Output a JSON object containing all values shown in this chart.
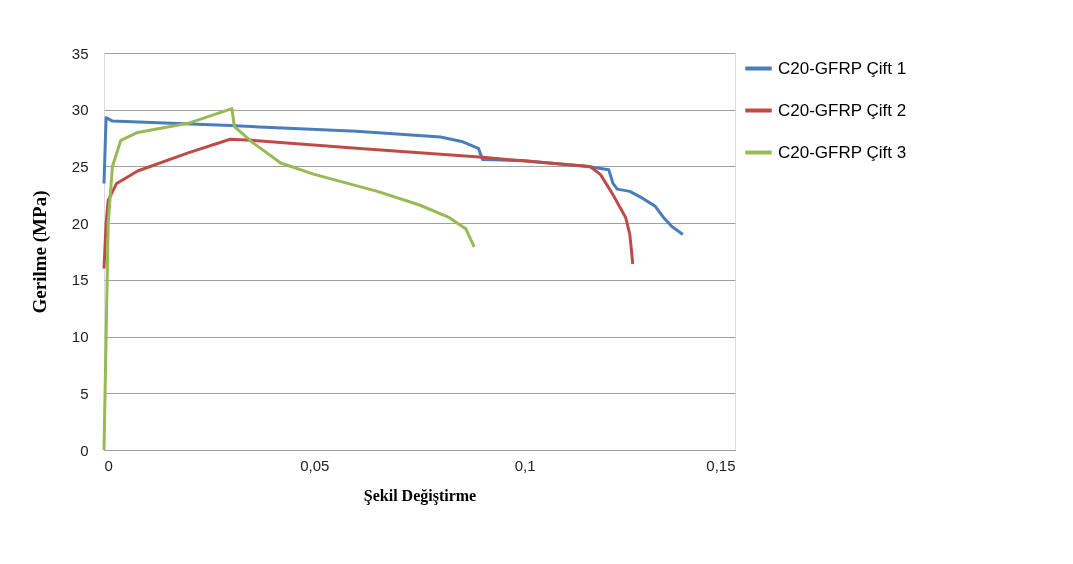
{
  "chart_data": {
    "type": "line",
    "xlabel": "Şekil Değiştirme",
    "ylabel": "Gerilme  (MPa)",
    "xlim": [
      0,
      0.15
    ],
    "xticks": [
      0,
      {
        "value": 0.05,
        "label": "0,05"
      },
      {
        "value": 0.1,
        "label": "0,1"
      },
      {
        "value": 0.15,
        "label": "0,15"
      }
    ],
    "ylim": [
      0,
      35
    ],
    "yticks": [
      0,
      5,
      10,
      15,
      20,
      25,
      30,
      35
    ],
    "grid": "y",
    "legend": "right",
    "marker": "none",
    "line_style": "solid",
    "series": [
      {
        "name": "C20-GFRP Çift 1",
        "color": "#4a7ebb",
        "x": [
          0,
          0.0005,
          0.002,
          0.03,
          0.06,
          0.08,
          0.085,
          0.089,
          0.09,
          0.1,
          0.115,
          0.12,
          0.121,
          0.122,
          0.125,
          0.128,
          0.131,
          0.133,
          0.135,
          0.1376
        ],
        "values": [
          23.5,
          29.3,
          29.0,
          28.6,
          28.1,
          27.6,
          27.2,
          26.6,
          25.6,
          25.5,
          25.0,
          24.7,
          23.5,
          23.0,
          22.8,
          22.2,
          21.5,
          20.5,
          19.7,
          19.0
        ]
      },
      {
        "name": "C20-GFRP Çift 2",
        "color": "#be4b48",
        "x": [
          0,
          0.0005,
          0.001,
          0.003,
          0.008,
          0.02,
          0.03,
          0.035,
          0.06,
          0.09,
          0.1155,
          0.118,
          0.121,
          0.124,
          0.125,
          0.1257
        ],
        "values": [
          16,
          20,
          22,
          23.5,
          24.6,
          26.2,
          27.4,
          27.3,
          26.6,
          25.8,
          25.0,
          24.3,
          22.5,
          20.5,
          19,
          16.4
        ]
      },
      {
        "name": "C20-GFRP Çift 3",
        "color": "#98b954",
        "x": [
          0,
          0.0005,
          0.001,
          0.002,
          0.004,
          0.008,
          0.02,
          0.0304,
          0.031,
          0.035,
          0.042,
          0.05,
          0.065,
          0.075,
          0.082,
          0.086,
          0.088
        ],
        "values": [
          0,
          10,
          20,
          25,
          27.3,
          28.0,
          28.8,
          30.1,
          28.5,
          27.2,
          25.3,
          24.3,
          22.8,
          21.6,
          20.5,
          19.5,
          17.9
        ]
      }
    ]
  }
}
